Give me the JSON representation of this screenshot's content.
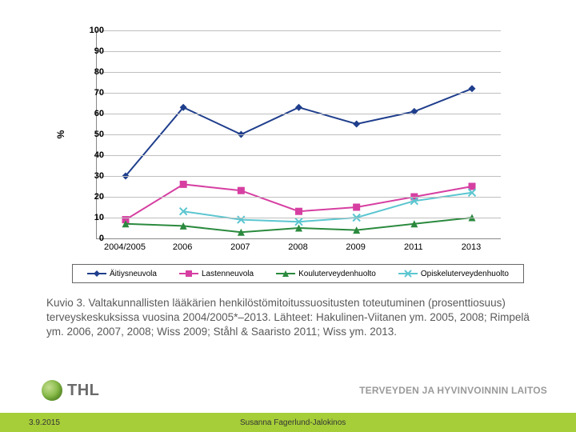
{
  "chart": {
    "type": "line",
    "ylabel": "%",
    "ylim": [
      0,
      100
    ],
    "ytick_step": 10,
    "categories": [
      "2004/2005",
      "2006",
      "2007",
      "2008",
      "2009",
      "2011",
      "2013"
    ],
    "grid_color": "#bfbfbf",
    "axis_color": "#888888",
    "background": "#ffffff",
    "tick_fontsize": 11,
    "label_fontsize": 12,
    "series": [
      {
        "name": "Äitiysneuvola",
        "color": "#1f3e8c",
        "marker": "diamond",
        "line_width": 2,
        "values": [
          30,
          63,
          50,
          63,
          55,
          61,
          72
        ]
      },
      {
        "name": "Lastenneuvola",
        "color": "#d63fa1",
        "marker": "square",
        "line_width": 2,
        "values": [
          9,
          26,
          23,
          13,
          15,
          20,
          25
        ]
      },
      {
        "name": "Kouluterveydenhuolto",
        "color": "#2b8a3e",
        "marker": "triangle",
        "line_width": 2,
        "values": [
          7,
          6,
          3,
          5,
          4,
          7,
          10
        ]
      },
      {
        "name": "Opiskeluterveydenhuolto",
        "color": "#5bc6d0",
        "marker": "x",
        "line_width": 2,
        "values": [
          null,
          13,
          9,
          8,
          10,
          18,
          22
        ]
      }
    ]
  },
  "legend": {
    "items": [
      {
        "label": "Äitiysneuvola",
        "color": "#1f3e8c",
        "marker": "diamond"
      },
      {
        "label": "Lastenneuvola",
        "color": "#d63fa1",
        "marker": "square"
      },
      {
        "label": "Kouluterveydenhuolto",
        "color": "#2b8a3e",
        "marker": "triangle"
      },
      {
        "label": "Opiskeluterveydenhuolto",
        "color": "#5bc6d0",
        "marker": "x"
      }
    ]
  },
  "caption": "Kuvio 3. Valtakunnallisten lääkärien henkilöstömitoitussuositusten toteutuminen (prosenttiosuus) terveyskeskuksissa vuosina 2004/2005*–2013. Lähteet: Hakulinen-Viitanen ym. 2005, 2008; Rimpelä ym. 2006, 2007, 2008; Wiss 2009; Ståhl & Saaristo 2011; Wiss ym. 2013.",
  "branding": {
    "logo_text": "THL",
    "org_name": "TERVEYDEN JA HYVINVOINNIN LAITOS"
  },
  "footer": {
    "date": "3.9.2015",
    "author": "Susanna Fagerlund-Jalokinos",
    "bg_color": "#a6ce39"
  }
}
